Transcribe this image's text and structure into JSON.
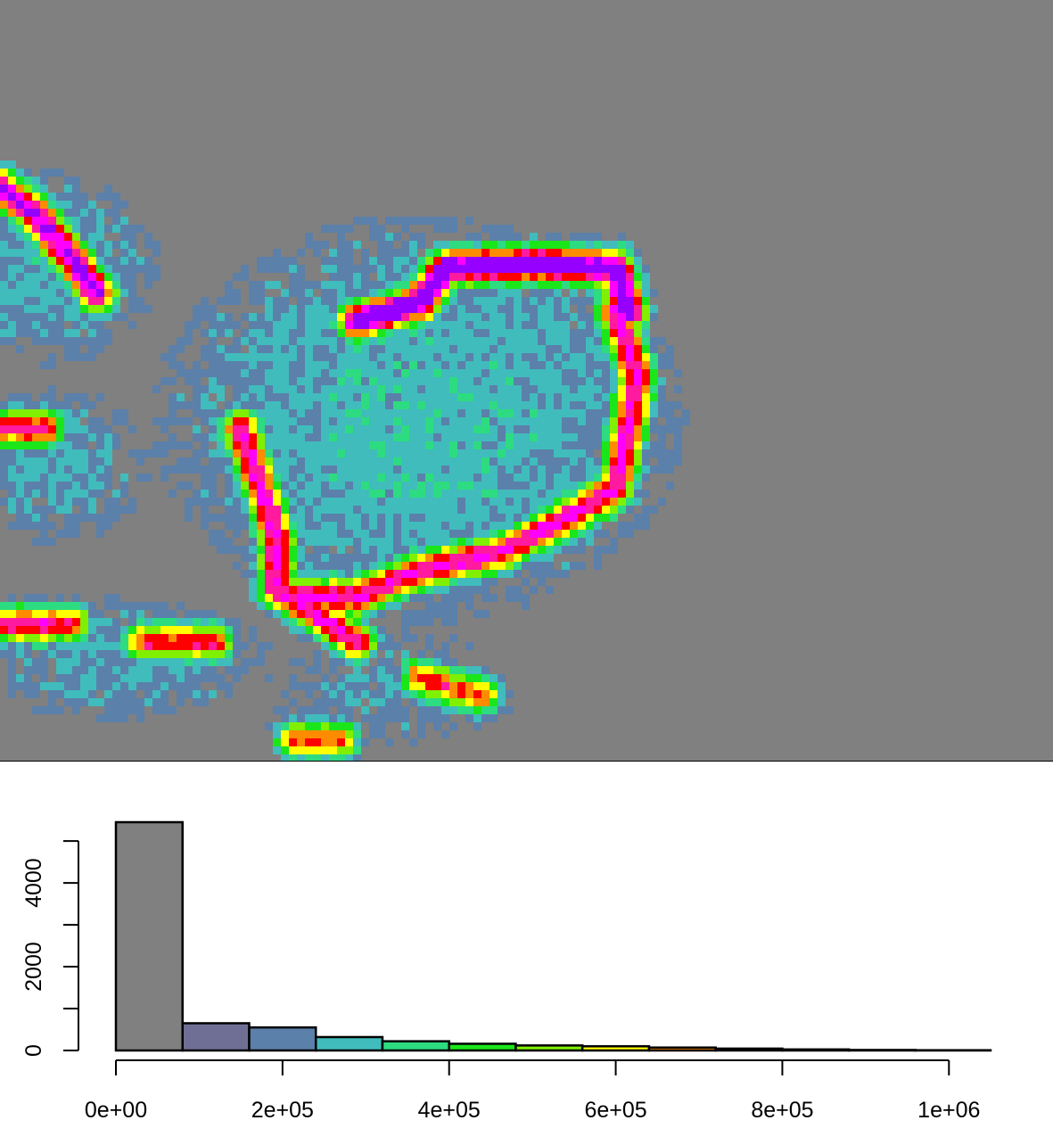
{
  "chart_data": [
    {
      "type": "heatmap",
      "description_of_values": "raster intensity map; gray background = lowest bin, colour ramp increases purple → blue → teal → green → yellow → orange → red → magenta → violet",
      "palette": [
        "#808080",
        "#6f6f96",
        "#5b80aa",
        "#40bcbc",
        "#2ddc80",
        "#1ae61a",
        "#80f000",
        "#ffff00",
        "#ff8c00",
        "#ff0000",
        "#ff1aa0",
        "#ff00ff",
        "#9600ff"
      ],
      "background": "#808080"
    },
    {
      "type": "bar",
      "subtype": "histogram",
      "bin_width": 80000,
      "bins": [
        {
          "from": 0,
          "to": 80000,
          "count": 5450,
          "color": "#808080"
        },
        {
          "from": 80000,
          "to": 160000,
          "count": 650,
          "color": "#6f6f96"
        },
        {
          "from": 160000,
          "to": 240000,
          "count": 550,
          "color": "#5b80aa"
        },
        {
          "from": 240000,
          "to": 320000,
          "count": 320,
          "color": "#40bcbc"
        },
        {
          "from": 320000,
          "to": 400000,
          "count": 220,
          "color": "#2ddc80"
        },
        {
          "from": 400000,
          "to": 480000,
          "count": 160,
          "color": "#1ae61a"
        },
        {
          "from": 480000,
          "to": 560000,
          "count": 120,
          "color": "#80f000"
        },
        {
          "from": 560000,
          "to": 640000,
          "count": 100,
          "color": "#ffff00"
        },
        {
          "from": 640000,
          "to": 720000,
          "count": 70,
          "color": "#ff8c00"
        },
        {
          "from": 720000,
          "to": 800000,
          "count": 45,
          "color": "#ff0000"
        },
        {
          "from": 800000,
          "to": 880000,
          "count": 25,
          "color": "#ff1aa0"
        },
        {
          "from": 880000,
          "to": 960000,
          "count": 12,
          "color": "#ff00ff"
        },
        {
          "from": 960000,
          "to": 1050000,
          "count": 6,
          "color": "#9600ff"
        }
      ],
      "xlim": [
        0,
        1050000
      ],
      "ylim": [
        0,
        5450
      ],
      "x_ticks": [
        0,
        200000,
        400000,
        600000,
        800000,
        1000000
      ],
      "x_tick_labels": [
        "0e+00",
        "2e+05",
        "4e+05",
        "6e+05",
        "8e+05",
        "1e+06"
      ],
      "y_ticks": [
        0,
        2000,
        4000
      ],
      "y_tick_labels": [
        "0",
        "2000",
        "4000"
      ],
      "title": "",
      "xlabel": "",
      "ylabel": "",
      "grid": false
    }
  ]
}
